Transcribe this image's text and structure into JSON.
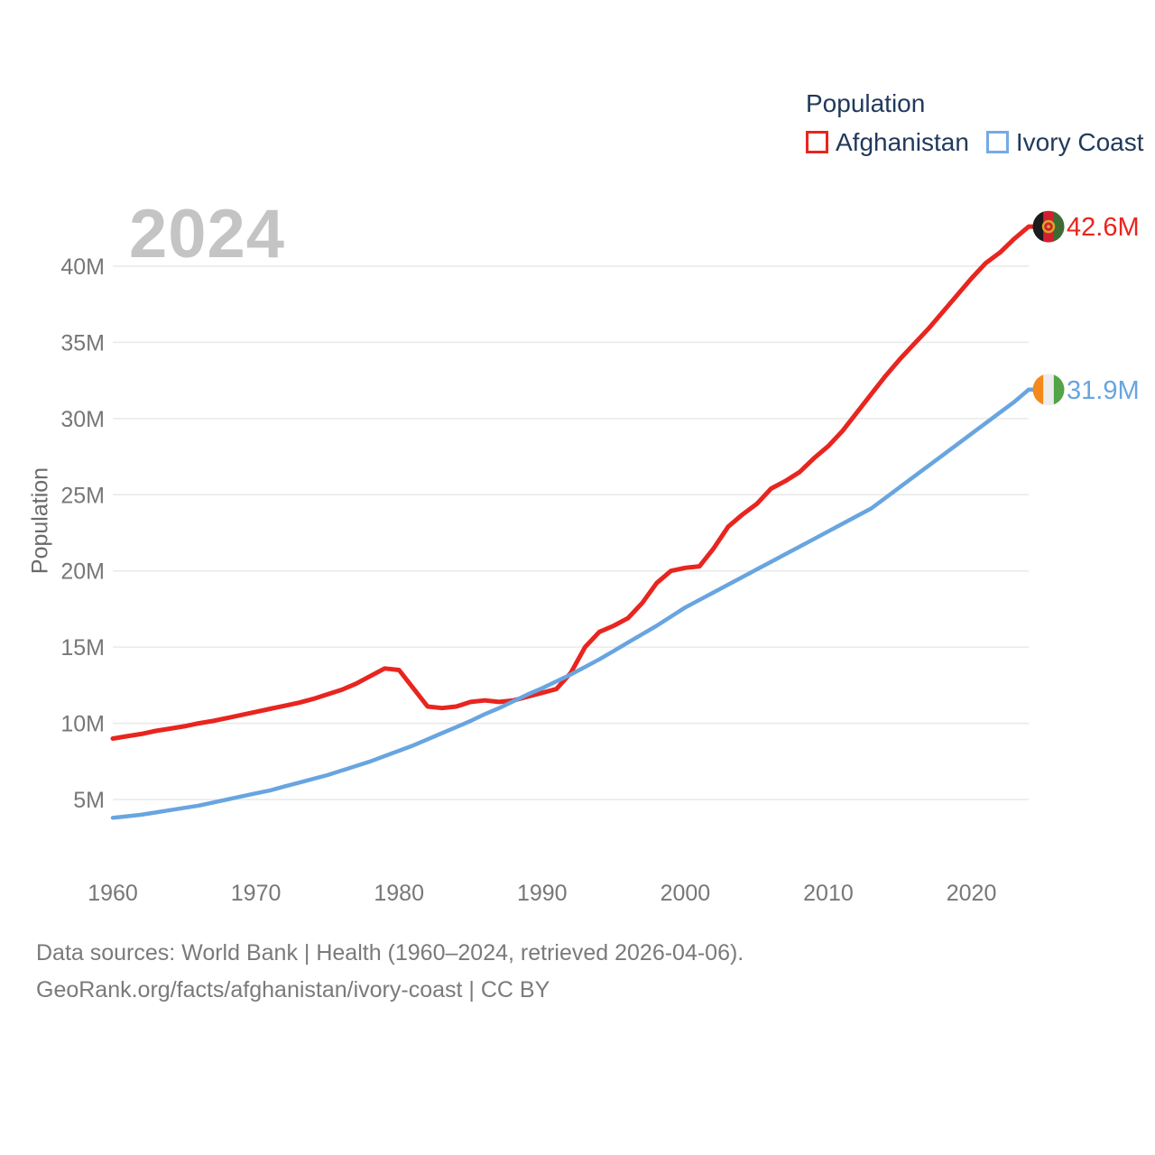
{
  "legend": {
    "title": "Population",
    "items": [
      {
        "label": "Afghanistan",
        "color": "#e8251f"
      },
      {
        "label": "Ivory Coast",
        "color": "#74aae4"
      }
    ]
  },
  "watermark": "2024",
  "y_axis_title": "Population",
  "footer": {
    "line1": "Data sources: World Bank | Health (1960–2024, retrieved 2026-04-06).",
    "line2": "GeoRank.org/facts/afghanistan/ivory-coast | CC BY"
  },
  "chart_data": {
    "type": "line",
    "title": "Population",
    "xlabel": "",
    "ylabel": "Population",
    "x_start": 1960,
    "x_end": 2024,
    "xticks": [
      1960,
      1970,
      1980,
      1990,
      2000,
      2010,
      2020
    ],
    "yticks": [
      5,
      10,
      15,
      20,
      25,
      30,
      35,
      40
    ],
    "ytick_suffix": "M",
    "ylim": [
      2,
      44
    ],
    "grid": "horizontal",
    "legend_position": "top-right",
    "series": [
      {
        "name": "Afghanistan",
        "color": "#e8251f",
        "line_width": 5,
        "end_label": "42.6M",
        "end_value": 42.6,
        "flag": {
          "name": "afghanistan-flag",
          "stripes": [
            "#1c1c1c",
            "#d32030",
            "#3e6b33"
          ],
          "emblem_color": "#d8a62a"
        },
        "values": [
          9.0,
          9.15,
          9.3,
          9.5,
          9.65,
          9.8,
          10.0,
          10.15,
          10.35,
          10.55,
          10.75,
          10.95,
          11.15,
          11.35,
          11.6,
          11.9,
          12.2,
          12.6,
          13.1,
          13.6,
          13.5,
          12.3,
          11.1,
          11.0,
          11.1,
          11.4,
          11.5,
          11.4,
          11.5,
          11.75,
          12.0,
          12.25,
          13.3,
          15.0,
          16.0,
          16.4,
          16.9,
          17.9,
          19.2,
          20.0,
          20.2,
          20.3,
          21.5,
          22.9,
          23.7,
          24.4,
          25.4,
          25.9,
          26.5,
          27.4,
          28.2,
          29.2,
          30.4,
          31.6,
          32.8,
          33.9,
          34.9,
          35.9,
          37.0,
          38.1,
          39.2,
          40.2,
          40.9,
          41.8,
          42.6
        ]
      },
      {
        "name": "Ivory Coast",
        "color": "#68a5e0",
        "line_width": 4.5,
        "end_label": "31.9M",
        "end_value": 31.9,
        "flag": {
          "name": "ivory-coast-flag",
          "stripes": [
            "#f5891d",
            "#ededed",
            "#52a447"
          ],
          "emblem_color": null
        },
        "values": [
          3.8,
          3.9,
          4.0,
          4.15,
          4.3,
          4.45,
          4.6,
          4.8,
          5.0,
          5.2,
          5.4,
          5.6,
          5.85,
          6.1,
          6.35,
          6.6,
          6.9,
          7.2,
          7.5,
          7.85,
          8.2,
          8.55,
          8.95,
          9.35,
          9.75,
          10.15,
          10.6,
          11.0,
          11.45,
          11.9,
          12.3,
          12.75,
          13.2,
          13.7,
          14.2,
          14.75,
          15.3,
          15.85,
          16.4,
          17.0,
          17.6,
          18.1,
          18.6,
          19.1,
          19.6,
          20.1,
          20.6,
          21.1,
          21.6,
          22.1,
          22.6,
          23.1,
          23.6,
          24.1,
          24.8,
          25.5,
          26.2,
          26.9,
          27.6,
          28.3,
          29.0,
          29.7,
          30.4,
          31.1,
          31.9
        ]
      }
    ]
  }
}
